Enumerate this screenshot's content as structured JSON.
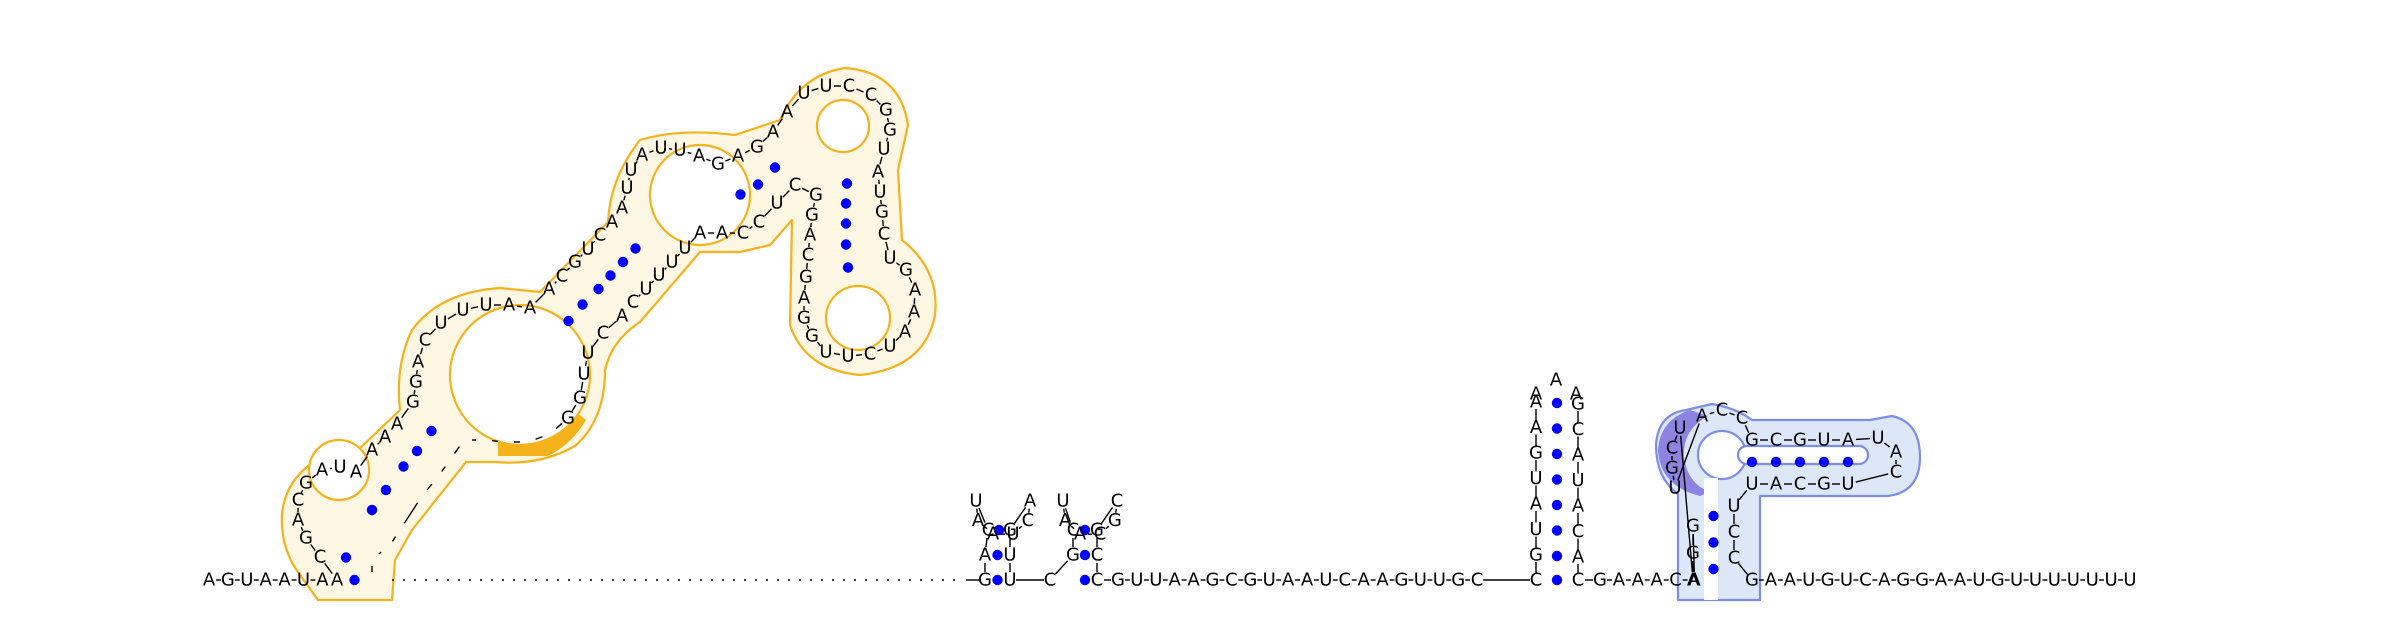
{
  "colors": {
    "domain_orange": "#f5b21a",
    "domain_orange_fill": "#fdf7e3",
    "domain_blue": "#7b8de6",
    "domain_blue_fill": "#dce8f8",
    "highlight_purple": "#8c84e0",
    "base_pair_dot": "#0000ff"
  },
  "strand_5prime": "AGUAAUAU",
  "strand_3prime_tail": "GAAUGUCAGGAAUGUUUUUUU",
  "linker_1": "GUUAAGCGUAAUCAAGUUGC",
  "linker_2": "GAAACA",
  "domain_orange": {
    "sequence": "ACGACGAUAAAAGGACUUUAAACGUCAAUUAUUAGAGAAUUCCGGUAUGCUGAAAUCUUGGAGCAGGCUCCAAUUUUCACUUGG",
    "highlight": "ACU"
  },
  "hairpin_1": {
    "stem_5prime": "GAC",
    "loop": "UAAUCA",
    "stem_3prime": "GUU"
  },
  "hairpin_2": {
    "stem_5prime": "CGC",
    "loop": "UAACGC",
    "stem_3prime": "GCC"
  },
  "hairpin_3": {
    "stem_5prime": "CGUAUGAA",
    "loop": "AAA",
    "stem_3prime": "GCAUACAC"
  },
  "domain_blue": {
    "stem_5prime": "AGG",
    "highlight": "UCGU",
    "inner_loop": "ACC",
    "inner_stem_top": "GCGUA",
    "tip": "UAC",
    "inner_stem_bottom": "UGCAU",
    "stem_3prime": "UCC"
  }
}
